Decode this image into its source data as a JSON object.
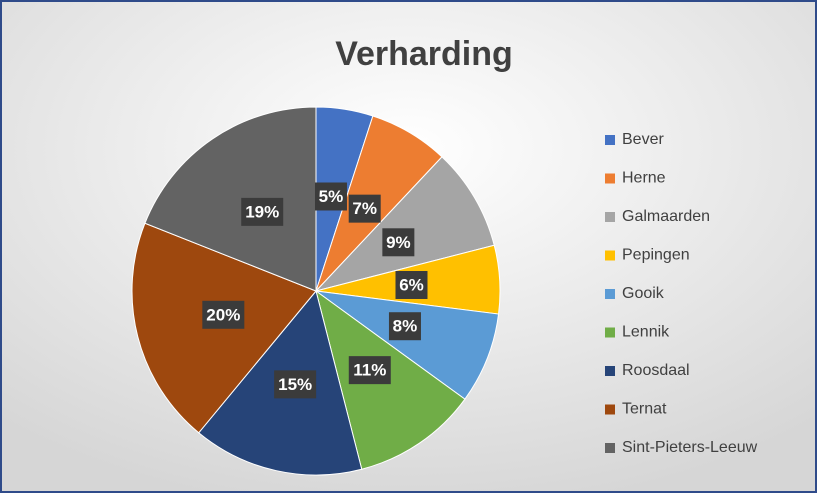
{
  "chart_data": {
    "type": "pie",
    "title": "Verharding",
    "categories": [
      "Bever",
      "Herne",
      "Galmaarden",
      "Pepingen",
      "Gooik",
      "Lennik",
      "Roosdaal",
      "Ternat",
      "Sint-Pieters-Leeuw"
    ],
    "values": [
      5,
      7,
      9,
      6,
      8,
      11,
      15,
      20,
      19
    ],
    "value_labels": [
      "5%",
      "7%",
      "9%",
      "6%",
      "8%",
      "11%",
      "15%",
      "20%",
      "19%"
    ],
    "colors": [
      "#4472c4",
      "#ed7d31",
      "#a5a5a5",
      "#ffc000",
      "#5b9bd5",
      "#70ad47",
      "#264478",
      "#9e480e",
      "#636363"
    ],
    "legend": "right"
  }
}
